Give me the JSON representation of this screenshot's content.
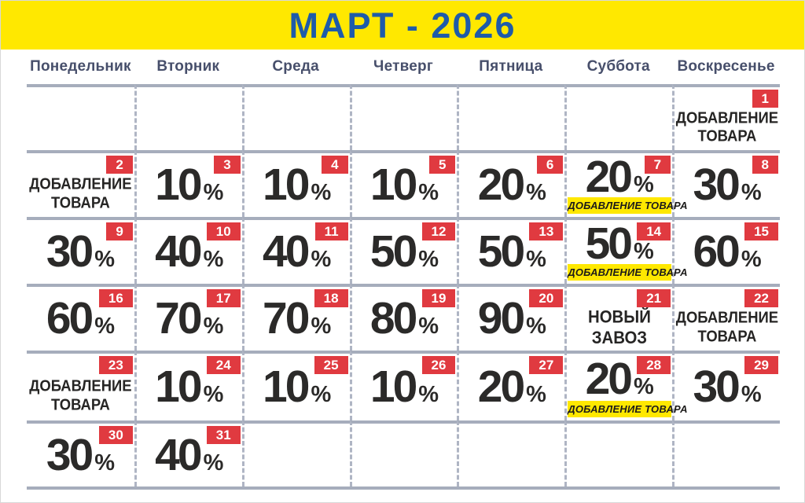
{
  "title": "МАРТ - 2026",
  "weekdays": [
    "Понедельник",
    "Вторник",
    "Среда",
    "Четверг",
    "Пятница",
    "Суббота",
    "Воскресенье"
  ],
  "percent_sign": "%",
  "colors": {
    "header_bg": "#FFE800",
    "title_text": "#1E5BA9",
    "weekday_text": "#474F6B",
    "badge_bg": "#E03A40",
    "badge_text": "#FFFFFF",
    "day_text": "#2B2A29",
    "highlight_bg": "#FFE800",
    "grid_line": "#A6ADBC"
  },
  "start_column_index": 6,
  "days": [
    {
      "num": "1",
      "kind": "label",
      "lines": [
        "ДОБАВЛЕНИЕ",
        "ТОВАРА"
      ]
    },
    {
      "num": "2",
      "kind": "label",
      "lines": [
        "ДОБАВЛЕНИЕ",
        "ТОВАРА"
      ]
    },
    {
      "num": "3",
      "kind": "percent",
      "value": "10"
    },
    {
      "num": "4",
      "kind": "percent",
      "value": "10"
    },
    {
      "num": "5",
      "kind": "percent",
      "value": "10"
    },
    {
      "num": "6",
      "kind": "percent",
      "value": "20"
    },
    {
      "num": "7",
      "kind": "percent",
      "value": "20",
      "highlight": "ДОБАВЛЕНИЕ ТОВАРА"
    },
    {
      "num": "8",
      "kind": "percent",
      "value": "30"
    },
    {
      "num": "9",
      "kind": "percent",
      "value": "30"
    },
    {
      "num": "10",
      "kind": "percent",
      "value": "40"
    },
    {
      "num": "11",
      "kind": "percent",
      "value": "40"
    },
    {
      "num": "12",
      "kind": "percent",
      "value": "50"
    },
    {
      "num": "13",
      "kind": "percent",
      "value": "50"
    },
    {
      "num": "14",
      "kind": "percent",
      "value": "50",
      "highlight": "ДОБАВЛЕНИЕ ТОВАРА"
    },
    {
      "num": "15",
      "kind": "percent",
      "value": "60"
    },
    {
      "num": "16",
      "kind": "percent",
      "value": "60"
    },
    {
      "num": "17",
      "kind": "percent",
      "value": "70"
    },
    {
      "num": "18",
      "kind": "percent",
      "value": "70"
    },
    {
      "num": "19",
      "kind": "percent",
      "value": "80"
    },
    {
      "num": "20",
      "kind": "percent",
      "value": "90"
    },
    {
      "num": "21",
      "kind": "label",
      "lines": [
        "НОВЫЙ",
        "ЗАВОЗ"
      ],
      "big": true
    },
    {
      "num": "22",
      "kind": "label",
      "lines": [
        "ДОБАВЛЕНИЕ",
        "ТОВАРА"
      ]
    },
    {
      "num": "23",
      "kind": "label",
      "lines": [
        "ДОБАВЛЕНИЕ",
        "ТОВАРА"
      ]
    },
    {
      "num": "24",
      "kind": "percent",
      "value": "10"
    },
    {
      "num": "25",
      "kind": "percent",
      "value": "10"
    },
    {
      "num": "26",
      "kind": "percent",
      "value": "10"
    },
    {
      "num": "27",
      "kind": "percent",
      "value": "20"
    },
    {
      "num": "28",
      "kind": "percent",
      "value": "20",
      "highlight": "ДОБАВЛЕНИЕ ТОВАРА"
    },
    {
      "num": "29",
      "kind": "percent",
      "value": "30"
    },
    {
      "num": "30",
      "kind": "percent",
      "value": "30"
    },
    {
      "num": "31",
      "kind": "percent",
      "value": "40"
    }
  ]
}
